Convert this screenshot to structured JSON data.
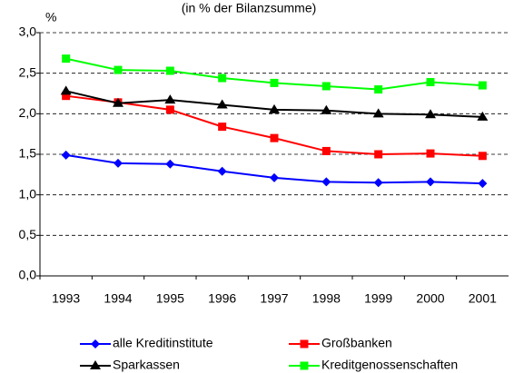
{
  "chart_data": {
    "type": "line",
    "subtitle": "(in % der Bilanzsumme)",
    "y_label": "%",
    "categories": [
      "1993",
      "1994",
      "1995",
      "1996",
      "1997",
      "1998",
      "1999",
      "2000",
      "2001"
    ],
    "series": [
      {
        "name": "alle Kreditinstitute",
        "color": "#0000ff",
        "marker": "diamond",
        "values": [
          1.49,
          1.39,
          1.38,
          1.29,
          1.21,
          1.16,
          1.15,
          1.16,
          1.14
        ]
      },
      {
        "name": "Großbanken",
        "color": "#ff0000",
        "marker": "square",
        "values": [
          2.22,
          2.14,
          2.05,
          1.84,
          1.7,
          1.54,
          1.5,
          1.51,
          1.48
        ]
      },
      {
        "name": "Sparkassen",
        "color": "#000000",
        "marker": "triangle",
        "values": [
          2.28,
          2.13,
          2.17,
          2.11,
          2.05,
          2.04,
          2.0,
          1.99,
          1.96
        ]
      },
      {
        "name": "Kreditgenossenschaften",
        "color": "#00ff00",
        "marker": "square",
        "values": [
          2.68,
          2.54,
          2.53,
          2.44,
          2.38,
          2.34,
          2.3,
          2.39,
          2.35
        ]
      }
    ],
    "ylim": [
      0,
      3
    ],
    "yticks": [
      {
        "value": 0,
        "label": "0,0"
      },
      {
        "value": 0.5,
        "label": "0,5"
      },
      {
        "value": 1,
        "label": "1,0"
      },
      {
        "value": 1.5,
        "label": "1,5"
      },
      {
        "value": 2,
        "label": "2,0"
      },
      {
        "value": 2.5,
        "label": "2,5"
      },
      {
        "value": 3,
        "label": "3,0"
      }
    ],
    "grid": true
  }
}
